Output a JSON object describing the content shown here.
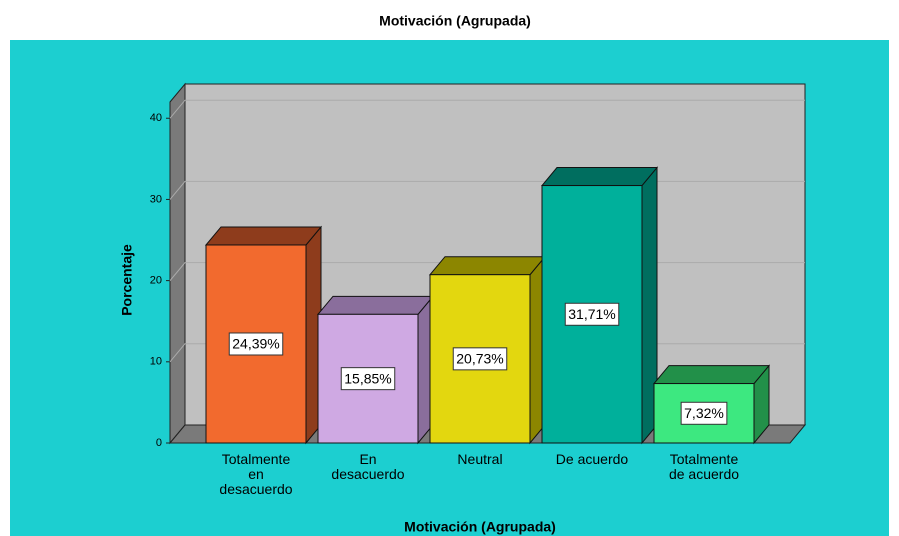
{
  "chart_data": {
    "type": "bar3d",
    "title": "Motivación (Agrupada)",
    "x_label": "Motivación (Agrupada)",
    "y_label": "Porcentaje",
    "categories": [
      "Totalmente en desacuerdo",
      "En desacuerdo",
      "Neutral",
      "De acuerdo",
      "Totalmente de acuerdo"
    ],
    "values": [
      24.39,
      15.85,
      20.73,
      31.71,
      7.32
    ],
    "value_labels": [
      "24,39%",
      "15,85%",
      "20,73%",
      "31,71%",
      "7,32%"
    ],
    "colors": [
      "#f26a2e",
      "#cfa9e3",
      "#e3d70f",
      "#00b09b",
      "#3de880"
    ],
    "side_colors": [
      "#8e3c1c",
      "#8a6e9c",
      "#8c8600",
      "#006e5f",
      "#229049"
    ],
    "ylim": [
      0,
      42
    ],
    "yticks": [
      0,
      10,
      20,
      30,
      40
    ],
    "grid": true
  }
}
